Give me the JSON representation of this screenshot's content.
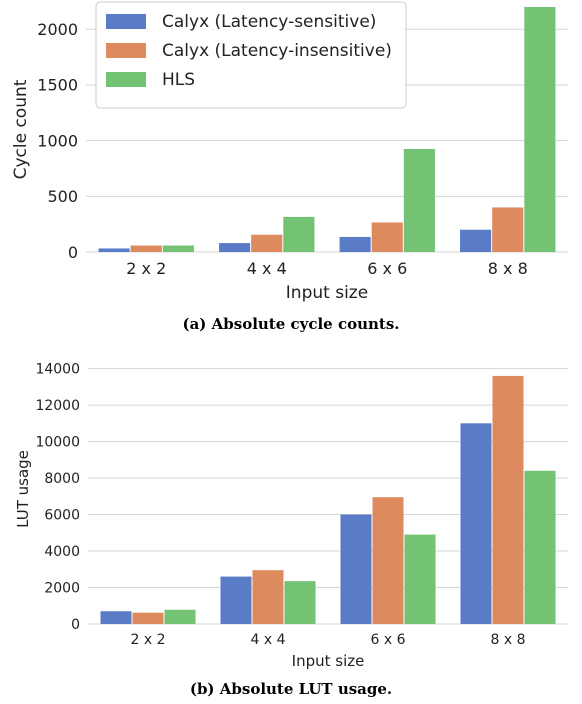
{
  "captions": {
    "a": "(a) Absolute cycle counts.",
    "b": "(b) Absolute LUT usage."
  },
  "chart_data": [
    {
      "type": "bar",
      "xlabel": "Input size",
      "ylabel": "Cycle count",
      "categories": [
        "2 x 2",
        "4 x 4",
        "6 x 6",
        "8 x 8"
      ],
      "ylim": [
        0,
        2200
      ],
      "yticks": [
        0,
        500,
        1000,
        1500,
        2000
      ],
      "grid": "horizontal",
      "legend": "top-left",
      "series": [
        {
          "name": "Calyx (Latency-sensitive)",
          "color": "#5a7cc7",
          "values": [
            32,
            80,
            135,
            200
          ]
        },
        {
          "name": "Calyx (Latency-insensitive)",
          "color": "#dd8a5e",
          "values": [
            58,
            155,
            265,
            400
          ]
        },
        {
          "name": "HLS",
          "color": "#74c274",
          "values": [
            58,
            315,
            925,
            2200
          ]
        }
      ]
    },
    {
      "type": "bar",
      "xlabel": "Input size",
      "ylabel": "LUT usage",
      "categories": [
        "2 x 2",
        "4 x 4",
        "6 x 6",
        "8 x 8"
      ],
      "ylim": [
        0,
        14800
      ],
      "yticks": [
        0,
        2000,
        4000,
        6000,
        8000,
        10000,
        12000,
        14000
      ],
      "grid": "horizontal",
      "legend": "none",
      "series": [
        {
          "name": "Calyx (Latency-sensitive)",
          "color": "#5a7cc7",
          "values": [
            700,
            2600,
            6000,
            11000
          ]
        },
        {
          "name": "Calyx (Latency-insensitive)",
          "color": "#dd8a5e",
          "values": [
            620,
            2950,
            6950,
            13600
          ]
        },
        {
          "name": "HLS",
          "color": "#74c274",
          "values": [
            780,
            2350,
            4900,
            8400
          ]
        }
      ]
    }
  ]
}
